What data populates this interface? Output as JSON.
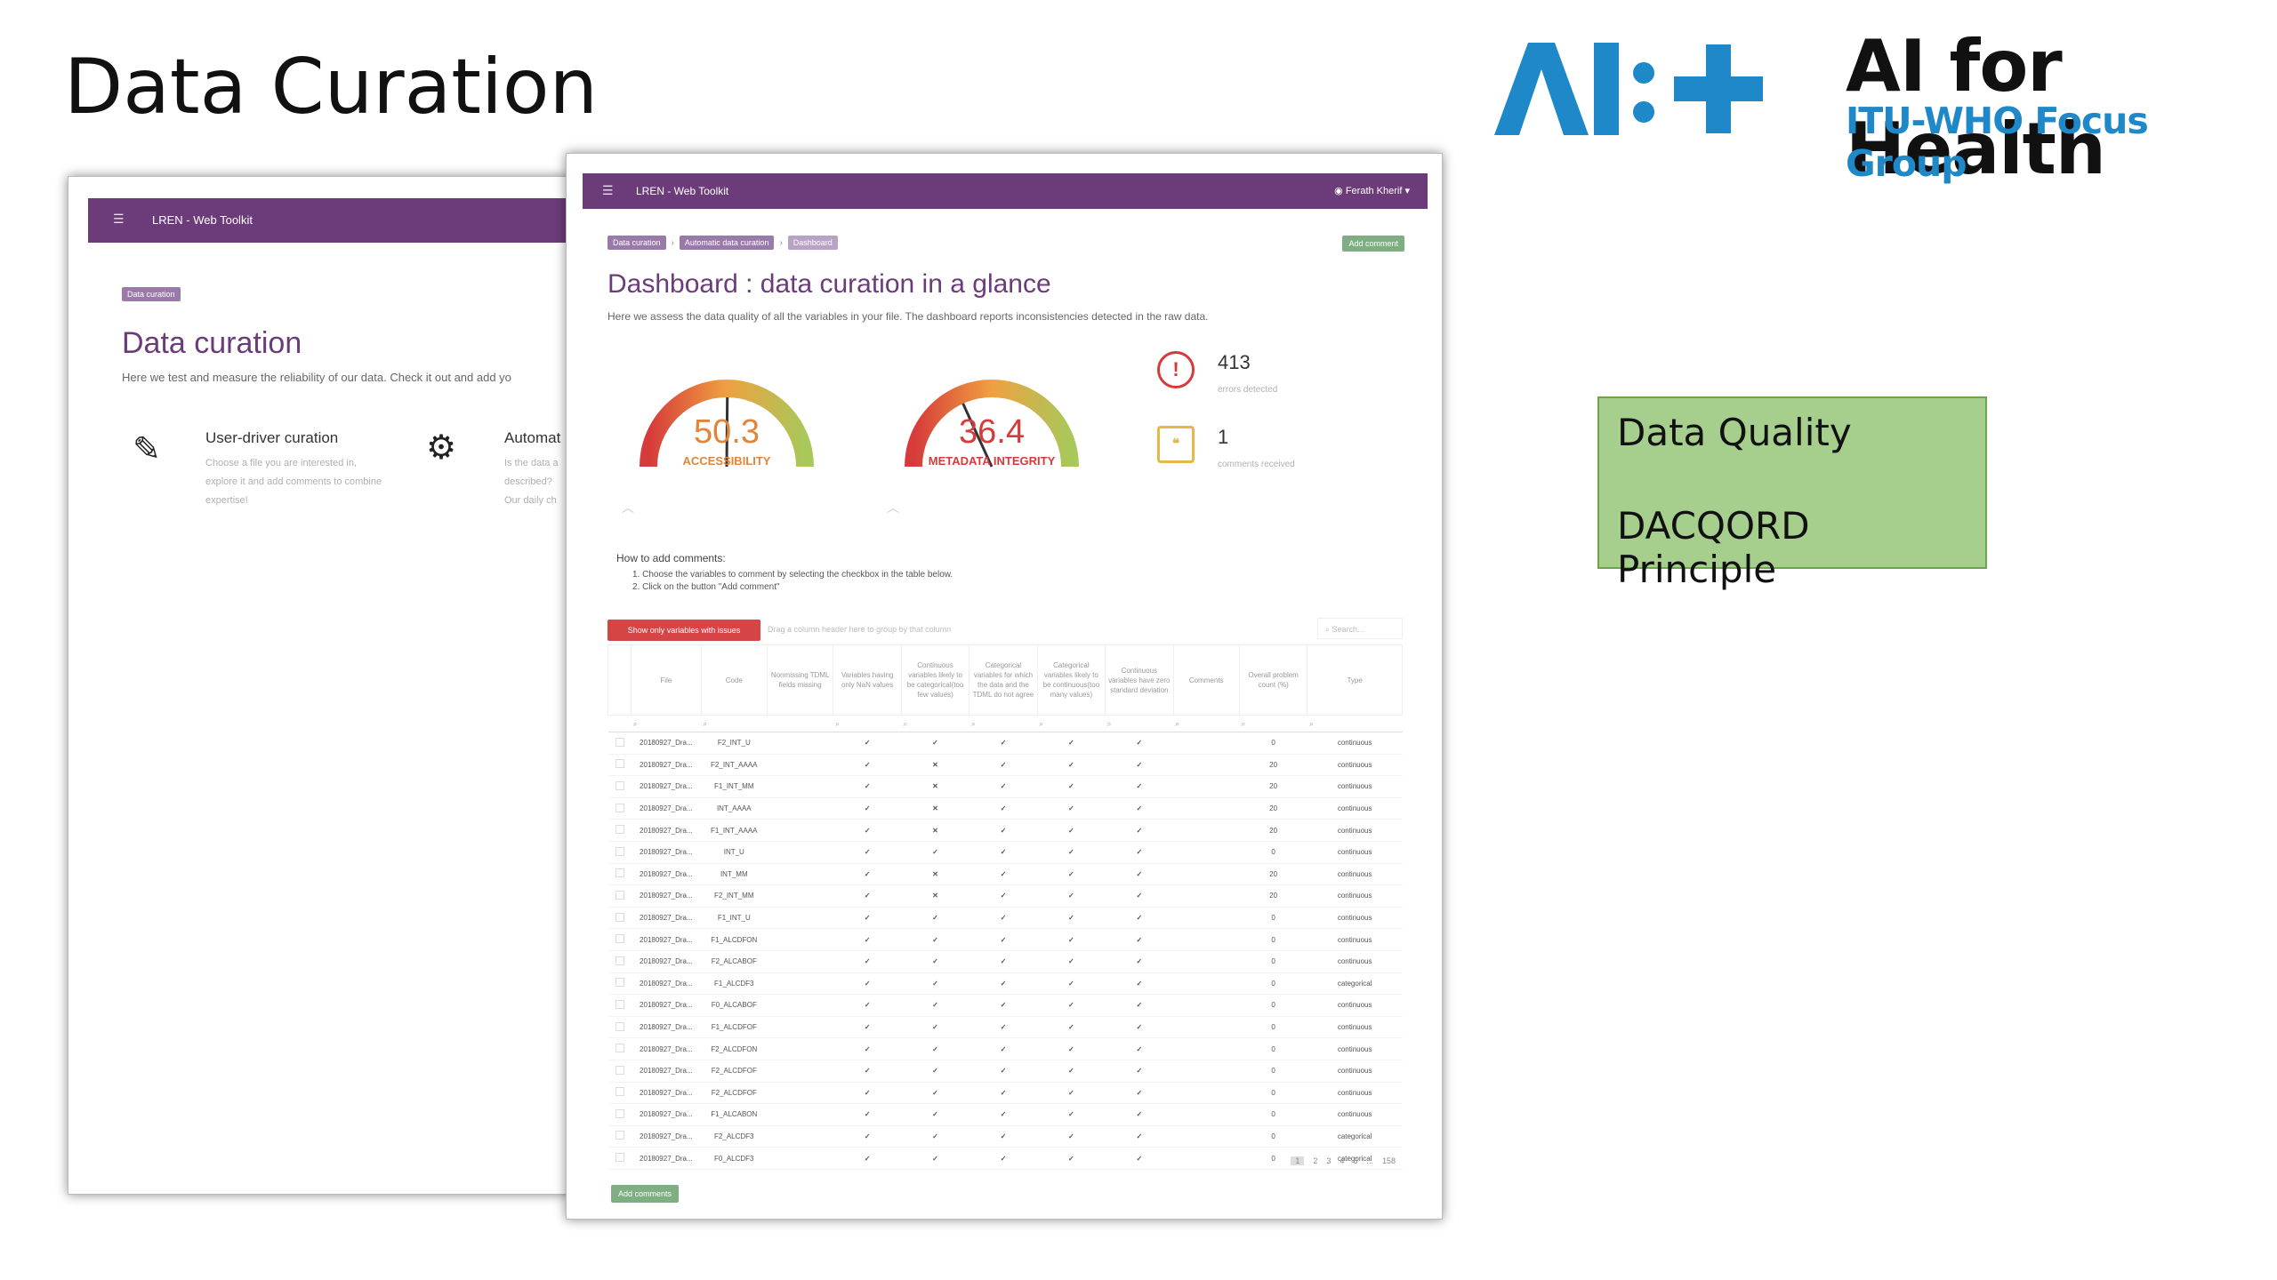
{
  "slide": {
    "title": "Data Curation"
  },
  "logo": {
    "mark_text": "AI:+",
    "title": "AI for Health",
    "subtitle": "ITU-WHO Focus Group",
    "mark_color": "#1e88c8"
  },
  "callout": {
    "line1": "Data Quality",
    "line2": "DACQORD Principle",
    "bg": "#a6cf8e"
  },
  "back_window": {
    "brand": "LREN - Web Toolkit",
    "breadcrumb": "Data curation",
    "title": "Data curation",
    "lead": "Here we test and measure the reliability of our data. Check it out and add yo",
    "features": [
      {
        "icon": "edit-icon",
        "title": "User-driver curation",
        "desc": "Choose a file you are interested in, explore it and add comments to combine expertise!"
      },
      {
        "icon": "gear-icon",
        "title": "Automat",
        "desc": "Is the data a described? Our daily ch"
      }
    ]
  },
  "front_window": {
    "brand": "LREN - Web Toolkit",
    "user": "Ferath Kherif ▾",
    "breadcrumbs": [
      "Data curation",
      "Automatic data curation",
      "Dashboard"
    ],
    "add_comment_label": "Add comment",
    "title": "Dashboard : data curation in a glance",
    "lead": "Here we assess the data quality of all the variables in your file. The dashboard reports inconsistencies detected in the raw data.",
    "gauges": [
      {
        "value": "50.3",
        "label": "ACCESSIBILITY",
        "level": 0.503
      },
      {
        "value": "36.4",
        "label": "METADATA INTEGRITY",
        "level": 0.364
      }
    ],
    "stats": [
      {
        "icon": "alert-icon",
        "value": "413",
        "label": "errors detected"
      },
      {
        "icon": "comment-icon",
        "value": "1",
        "label": "comments received"
      }
    ],
    "howto": {
      "title": "How to add comments:",
      "steps": [
        "1. Choose the variables to comment by selecting the checkbox in the table below.",
        "2. Click on the button \"Add comment\""
      ]
    },
    "show_issues_label": "Show only variables with issues",
    "drag_hint": "Drag a column header here to group by that column",
    "search_placeholder": "Search...",
    "columns": [
      "",
      "File",
      "Code",
      "Nonmissing TDML fields missing",
      "Variables having only NaN values",
      "Continuous variables likely to be categorical(too few values)",
      "Categorical variables for which the data and the TDML do not agree",
      "Categorical variables likely to be continuous(too many values)",
      "Continuous variables have zero standard deviation",
      "Comments",
      "Overall problem count (%)",
      "Type"
    ],
    "rows": [
      {
        "file": "20180927_Dra...",
        "code": "F2_INT_U",
        "c": [
          "ok",
          "ok",
          "ok",
          "ok",
          "ok"
        ],
        "count": "0",
        "type": "continuous"
      },
      {
        "file": "20180927_Dra...",
        "code": "F2_INT_AAAA",
        "c": [
          "ok",
          "bad",
          "ok",
          "ok",
          "ok"
        ],
        "count": "20",
        "type": "continuous"
      },
      {
        "file": "20180927_Dra...",
        "code": "F1_INT_MM",
        "c": [
          "ok",
          "bad",
          "ok",
          "ok",
          "ok"
        ],
        "count": "20",
        "type": "continuous"
      },
      {
        "file": "20180927_Dra...",
        "code": "INT_AAAA",
        "c": [
          "ok",
          "bad",
          "ok",
          "ok",
          "ok"
        ],
        "count": "20",
        "type": "continuous"
      },
      {
        "file": "20180927_Dra...",
        "code": "F1_INT_AAAA",
        "c": [
          "ok",
          "bad",
          "ok",
          "ok",
          "ok"
        ],
        "count": "20",
        "type": "continuous"
      },
      {
        "file": "20180927_Dra...",
        "code": "INT_U",
        "c": [
          "ok",
          "ok",
          "ok",
          "ok",
          "ok"
        ],
        "count": "0",
        "type": "continuous"
      },
      {
        "file": "20180927_Dra...",
        "code": "INT_MM",
        "c": [
          "ok",
          "bad",
          "ok",
          "ok",
          "ok"
        ],
        "count": "20",
        "type": "continuous"
      },
      {
        "file": "20180927_Dra...",
        "code": "F2_INT_MM",
        "c": [
          "ok",
          "bad",
          "ok",
          "ok",
          "ok"
        ],
        "count": "20",
        "type": "continuous"
      },
      {
        "file": "20180927_Dra...",
        "code": "F1_INT_U",
        "c": [
          "ok",
          "ok",
          "ok",
          "ok",
          "ok"
        ],
        "count": "0",
        "type": "continuous"
      },
      {
        "file": "20180927_Dra...",
        "code": "F1_ALCDFON",
        "c": [
          "ok",
          "ok",
          "ok",
          "ok",
          "ok"
        ],
        "count": "0",
        "type": "continuous"
      },
      {
        "file": "20180927_Dra...",
        "code": "F2_ALCABOF",
        "c": [
          "ok",
          "ok",
          "ok",
          "ok",
          "ok"
        ],
        "count": "0",
        "type": "continuous"
      },
      {
        "file": "20180927_Dra...",
        "code": "F1_ALCDF3",
        "c": [
          "ok",
          "ok",
          "ok",
          "ok",
          "ok"
        ],
        "count": "0",
        "type": "categorical"
      },
      {
        "file": "20180927_Dra...",
        "code": "F0_ALCABOF",
        "c": [
          "ok",
          "ok",
          "ok",
          "ok",
          "ok"
        ],
        "count": "0",
        "type": "continuous"
      },
      {
        "file": "20180927_Dra...",
        "code": "F1_ALCDFOF",
        "c": [
          "ok",
          "ok",
          "ok",
          "ok",
          "ok"
        ],
        "count": "0",
        "type": "continuous"
      },
      {
        "file": "20180927_Dra...",
        "code": "F2_ALCDFON",
        "c": [
          "ok",
          "ok",
          "ok",
          "ok",
          "ok"
        ],
        "count": "0",
        "type": "continuous"
      },
      {
        "file": "20180927_Dra...",
        "code": "F2_ALCDFOF",
        "c": [
          "ok",
          "ok",
          "ok",
          "ok",
          "ok"
        ],
        "count": "0",
        "type": "continuous"
      },
      {
        "file": "20180927_Dra...",
        "code": "F2_ALCDFOF",
        "c": [
          "ok",
          "ok",
          "ok",
          "ok",
          "ok"
        ],
        "count": "0",
        "type": "continuous"
      },
      {
        "file": "20180927_Dra...",
        "code": "F1_ALCABON",
        "c": [
          "ok",
          "ok",
          "ok",
          "ok",
          "ok"
        ],
        "count": "0",
        "type": "continuous"
      },
      {
        "file": "20180927_Dra...",
        "code": "F2_ALCDF3",
        "c": [
          "ok",
          "ok",
          "ok",
          "ok",
          "ok"
        ],
        "count": "0",
        "type": "categorical"
      },
      {
        "file": "20180927_Dra...",
        "code": "F0_ALCDF3",
        "c": [
          "ok",
          "ok",
          "ok",
          "ok",
          "ok"
        ],
        "count": "0",
        "type": "categorical"
      }
    ],
    "pager": [
      "1",
      "2",
      "3",
      "4",
      "5",
      "...",
      "158"
    ],
    "add_comments_label": "Add comments"
  }
}
